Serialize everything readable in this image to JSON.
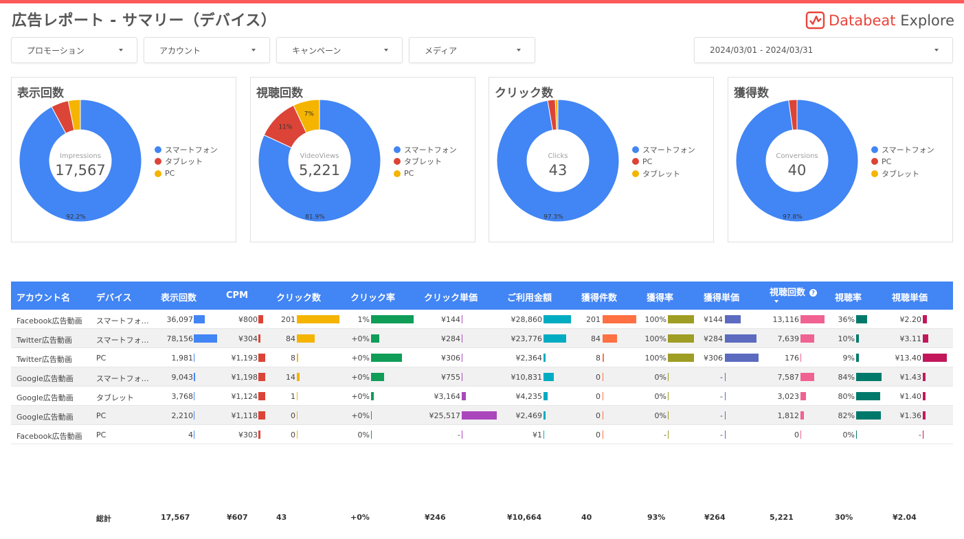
{
  "header": {
    "title": "広告レポート - サマリー（デバイス）",
    "logo_brand": "Databeat",
    "logo_product": "Explore",
    "accent": "#ff5a5a"
  },
  "filters": [
    {
      "label": "プロモーション"
    },
    {
      "label": "アカウント"
    },
    {
      "label": "キャンペーン"
    },
    {
      "label": "メディア"
    }
  ],
  "date_range": "2024/03/01 - 2024/03/31",
  "donuts": [
    {
      "title": "表示回数",
      "metric": "Impressions",
      "total": "17,567",
      "segments": [
        {
          "name": "スマートフォン",
          "pct": 92.2,
          "color": "#4285f4",
          "label": "92.2%"
        },
        {
          "name": "タブレット",
          "pct": 4.6,
          "color": "#db4437",
          "label": ""
        },
        {
          "name": "PC",
          "pct": 3.2,
          "color": "#f4b400",
          "label": ""
        }
      ]
    },
    {
      "title": "視聴回数",
      "metric": "VideoViews",
      "total": "5,221",
      "segments": [
        {
          "name": "スマートフォン",
          "pct": 81.9,
          "color": "#4285f4",
          "label": "81.9%"
        },
        {
          "name": "タブレット",
          "pct": 11.1,
          "color": "#db4437",
          "label": "11%"
        },
        {
          "name": "PC",
          "pct": 7.0,
          "color": "#f4b400",
          "label": "7%"
        }
      ]
    },
    {
      "title": "クリック数",
      "metric": "Clicks",
      "total": "43",
      "segments": [
        {
          "name": "スマートフォン",
          "pct": 97.3,
          "color": "#4285f4",
          "label": "97.3%"
        },
        {
          "name": "PC",
          "pct": 2.0,
          "color": "#db4437",
          "label": ""
        },
        {
          "name": "タブレット",
          "pct": 0.7,
          "color": "#f4b400",
          "label": ""
        }
      ]
    },
    {
      "title": "獲得数",
      "metric": "Conversions",
      "total": "40",
      "segments": [
        {
          "name": "スマートフォン",
          "pct": 97.8,
          "color": "#4285f4",
          "label": "97.8%"
        },
        {
          "name": "PC",
          "pct": 2.2,
          "color": "#db4437",
          "label": ""
        },
        {
          "name": "タブレット",
          "pct": 0,
          "color": "#f4b400",
          "label": ""
        }
      ]
    }
  ],
  "table": {
    "headers": [
      "アカウント名",
      "デバイス",
      "表示回数",
      "CPM",
      "クリック数",
      "クリック率",
      "クリック単価",
      "ご利用金額",
      "獲得件数",
      "獲得率",
      "獲得単価",
      "視聴回数",
      "視聴率",
      "視聴単価"
    ],
    "help_icon": "?",
    "bar_colors": [
      "#4285f4",
      "#db4437",
      "#f4b400",
      "#0f9d58",
      "#ab47bc",
      "#00acc1",
      "#ff7043",
      "#9e9d24",
      "#5c6bc0",
      "#f06292",
      "#00796b",
      "#c2185b"
    ],
    "rows": [
      {
        "account": "Facebook広告動画",
        "device": "スマートフォ…",
        "vals": [
          "36,097",
          "¥800",
          "201",
          "1%",
          "¥144",
          "¥28,860",
          "201",
          "100%",
          "¥144",
          "13,116",
          "36%",
          "¥2.20"
        ],
        "ratios": [
          0.46,
          0.67,
          1.0,
          1.0,
          0.0,
          1.0,
          1.0,
          1.0,
          0.47,
          1.0,
          0.43,
          0.16
        ]
      },
      {
        "account": "Twitter広告動画",
        "device": "スマートフォ…",
        "vals": [
          "78,156",
          "¥304",
          "84",
          "+0%",
          "¥284",
          "¥23,776",
          "84",
          "100%",
          "¥284",
          "7,639",
          "10%",
          "¥3.11"
        ],
        "ratios": [
          1.0,
          0.25,
          0.42,
          0.2,
          0.0,
          0.82,
          0.42,
          1.0,
          0.93,
          0.58,
          0.12,
          0.23
        ]
      },
      {
        "account": "Twitter広告動画",
        "device": "PC",
        "vals": [
          "1,981",
          "¥1,193",
          "8",
          "+0%",
          "¥306",
          "¥2,364",
          "8",
          "100%",
          "¥306",
          "176",
          "9%",
          "¥13.40"
        ],
        "ratios": [
          0.0,
          1.0,
          0.04,
          0.72,
          0.0,
          0.08,
          0.04,
          1.0,
          1.0,
          0.0,
          0.11,
          1.0
        ]
      },
      {
        "account": "Google広告動画",
        "device": "スマートフォ…",
        "vals": [
          "9,043",
          "¥1,198",
          "14",
          "+0%",
          "¥755",
          "¥10,831",
          "0",
          "0%",
          "-",
          "7,587",
          "84%",
          "¥1.43"
        ],
        "ratios": [
          0.07,
          1.0,
          0.07,
          0.3,
          0.0,
          0.38,
          0.0,
          0.0,
          0.0,
          0.58,
          1.0,
          0.11
        ]
      },
      {
        "account": "Google広告動画",
        "device": "タブレット",
        "vals": [
          "3,768",
          "¥1,124",
          "1",
          "+0%",
          "¥3,164",
          "¥4,235",
          "0",
          "0%",
          "-",
          "3,023",
          "80%",
          "¥1.40"
        ],
        "ratios": [
          0.0,
          0.97,
          0.0,
          0.06,
          0.12,
          0.15,
          0.0,
          0.0,
          0.0,
          0.23,
          0.95,
          0.1
        ]
      },
      {
        "account": "Google広告動画",
        "device": "PC",
        "vals": [
          "2,210",
          "¥1,118",
          "0",
          "+0%",
          "¥25,517",
          "¥2,469",
          "0",
          "0%",
          "-",
          "1,812",
          "82%",
          "¥1.36"
        ],
        "ratios": [
          0.0,
          0.97,
          0.0,
          0.0,
          1.0,
          0.08,
          0.0,
          0.0,
          0.0,
          0.14,
          0.98,
          0.1
        ]
      },
      {
        "account": "Facebook広告動画",
        "device": "PC",
        "vals": [
          "4",
          "¥303",
          "0",
          "0%",
          "-",
          "¥1",
          "0",
          "-",
          "-",
          "0",
          "0%",
          "-"
        ],
        "ratios": [
          0.0,
          0.25,
          0.0,
          0.0,
          0.0,
          0.0,
          0.0,
          0.0,
          0.0,
          0.0,
          0.0,
          0.0
        ]
      }
    ],
    "totals": {
      "label": "総計",
      "vals": [
        "17,567",
        "¥607",
        "43",
        "+0%",
        "¥246",
        "¥10,664",
        "40",
        "93%",
        "¥264",
        "5,221",
        "30%",
        "¥2.04"
      ]
    }
  }
}
